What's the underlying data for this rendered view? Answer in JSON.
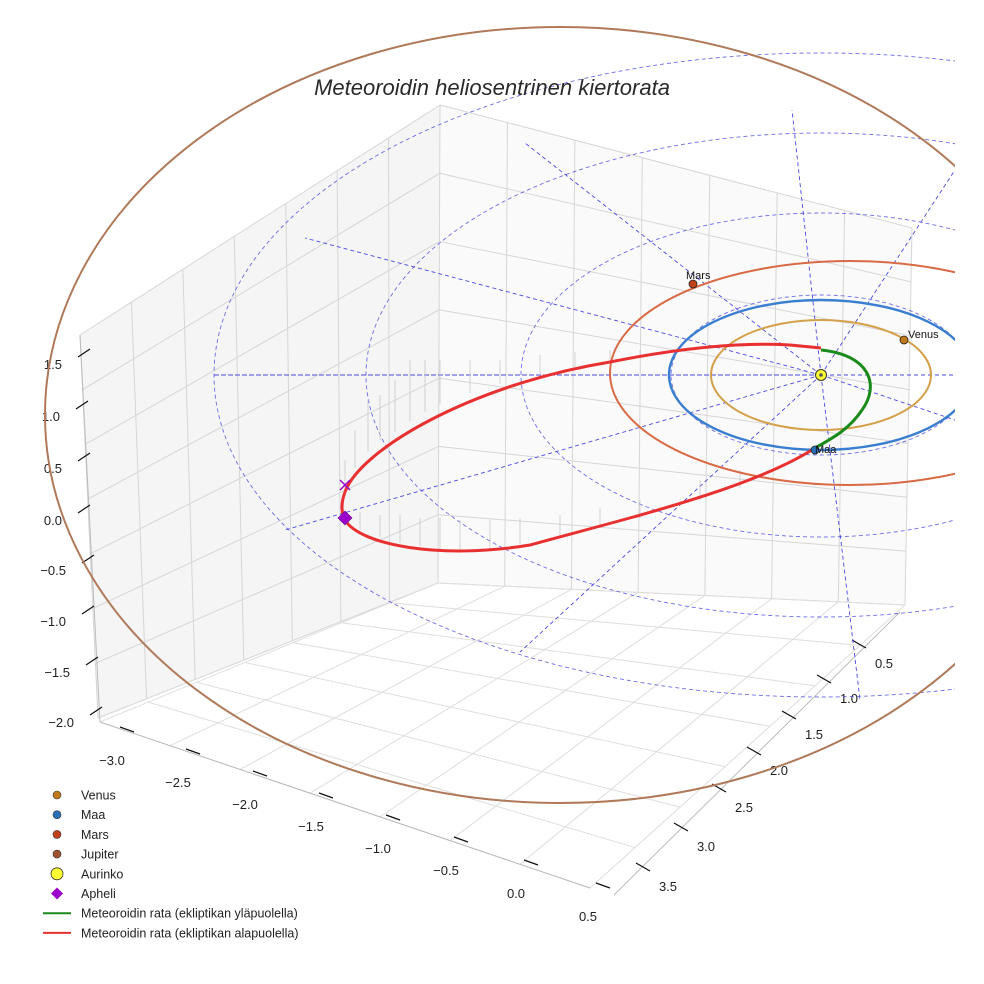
{
  "chart_data": {
    "type": "line",
    "title": "Meteoroidin heliosentrinen kiertorata",
    "axes": {
      "x_ticks": [
        "−3.0",
        "−2.5",
        "−2.0",
        "−1.5",
        "−1.0",
        "−0.5",
        "0.0",
        "0.5"
      ],
      "y_ticks": [
        "0.5",
        "1.0",
        "1.5",
        "2.0",
        "2.5",
        "3.0",
        "3.5"
      ],
      "z_ticks": [
        "1.5",
        "1.0",
        "0.5",
        "0.0",
        "−0.5",
        "−1.0",
        "−1.5",
        "−2.0"
      ],
      "xlim": [
        -3.2,
        0.6
      ],
      "ylim": [
        0.2,
        3.7
      ],
      "zlim": [
        -2.1,
        1.8
      ],
      "grid": true
    },
    "planets": [
      {
        "name": "Venus",
        "label": "Venus",
        "orbit_radius_au": 0.72,
        "color": "#d4a04a",
        "marker_color": "#c07a1a"
      },
      {
        "name": "Maa",
        "label": "Maa",
        "orbit_radius_au": 1.0,
        "color": "#3a7fcf",
        "marker_color": "#2a70b8"
      },
      {
        "name": "Mars",
        "label": "Mars",
        "orbit_radius_au": 1.52,
        "color": "#d86a45",
        "marker_color": "#c0401a"
      },
      {
        "name": "Jupiter",
        "orbit_radius_au": 5.2,
        "color": "#b07a5a",
        "marker_color": "#a0522d"
      }
    ],
    "sun": {
      "name": "Aurinko",
      "color": "#ffff33"
    },
    "aphelion": {
      "name": "Apheli",
      "color": "#9900cc"
    },
    "series": [
      {
        "name": "Meteoroidin rata (ekliptikan yläpuolella)",
        "color": "#1a8a1a"
      },
      {
        "name": "Meteoroidin rata (ekliptikan alapuolella)",
        "color": "#e83030"
      }
    ],
    "reference_rings_au": [
      1,
      2,
      3,
      4
    ],
    "legend": {
      "placement": "bottom-left",
      "entries": [
        {
          "label": "Venus",
          "kind": "dot",
          "color": "#c07a1a"
        },
        {
          "label": "Maa",
          "kind": "dot",
          "color": "#2a70b8"
        },
        {
          "label": "Mars",
          "kind": "dot",
          "color": "#c0401a"
        },
        {
          "label": "Jupiter",
          "kind": "dot",
          "color": "#a0522d"
        },
        {
          "label": "Aurinko",
          "kind": "sun",
          "color": "#ffff33"
        },
        {
          "label": "Apheli",
          "kind": "diamond",
          "color": "#9900cc"
        },
        {
          "label": "Meteoroidin rata (ekliptikan yläpuolella)",
          "kind": "line",
          "color": "#1a8a1a"
        },
        {
          "label": "Meteoroidin rata (ekliptikan alapuolella)",
          "kind": "line",
          "color": "#e83030"
        }
      ]
    }
  }
}
